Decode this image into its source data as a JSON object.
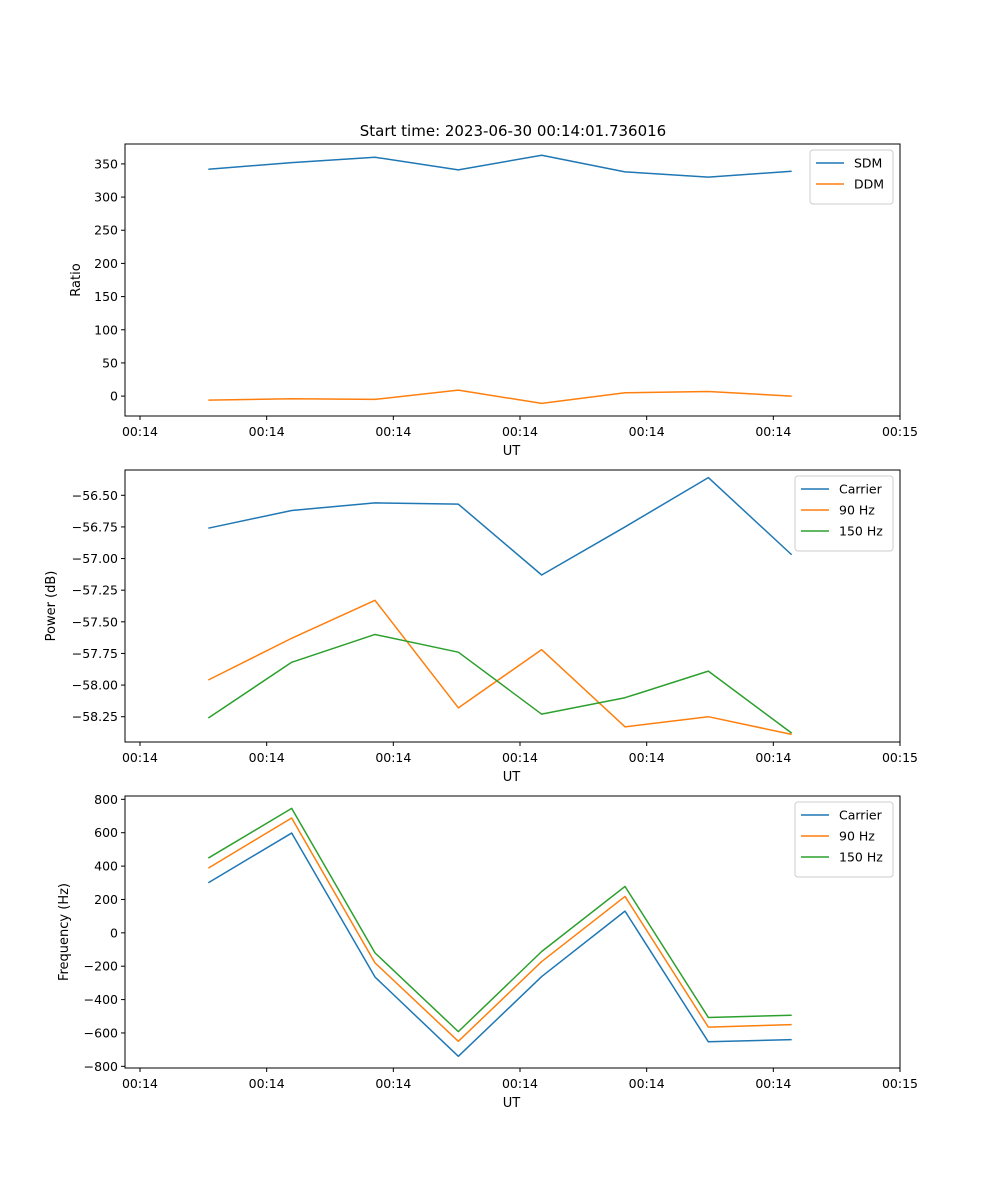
{
  "figure_title": "Start time: 2023-06-30 00:14:01.736016",
  "chart_data": [
    {
      "type": "line",
      "title": "Start time: 2023-06-30 00:14:01.736016",
      "xlabel": "UT",
      "ylabel": "Ratio",
      "x_ticks": [
        "00:14",
        "00:14",
        "00:14",
        "00:14",
        "00:14",
        "00:14",
        "00:15"
      ],
      "x_points": [
        1,
        2,
        3,
        4,
        5,
        6,
        7,
        8
      ],
      "xlim": [
        0,
        9.3
      ],
      "ylim": [
        -30,
        380
      ],
      "yticks": [
        0,
        50,
        100,
        150,
        200,
        250,
        300,
        350
      ],
      "ytick_labels": [
        "0",
        "50",
        "100",
        "150",
        "200",
        "250",
        "300",
        "350"
      ],
      "legend_position": "upper right",
      "grid": false,
      "series": [
        {
          "name": "SDM",
          "color": "#1f77b4",
          "values": [
            342,
            352,
            360,
            341,
            363,
            338,
            330,
            339
          ]
        },
        {
          "name": "DDM",
          "color": "#ff7f0e",
          "values": [
            -6,
            -4,
            -5,
            9,
            -11,
            5,
            7,
            0
          ]
        }
      ]
    },
    {
      "type": "line",
      "xlabel": "UT",
      "ylabel": "Power (dB)",
      "x_ticks": [
        "00:14",
        "00:14",
        "00:14",
        "00:14",
        "00:14",
        "00:14",
        "00:15"
      ],
      "x_points": [
        1,
        2,
        3,
        4,
        5,
        6,
        7,
        8
      ],
      "xlim": [
        0,
        9.3
      ],
      "ylim": [
        -58.45,
        -56.3
      ],
      "yticks": [
        -58.25,
        -58.0,
        -57.75,
        -57.5,
        -57.25,
        -57.0,
        -56.75,
        -56.5
      ],
      "ytick_labels": [
        "−58.25",
        "−58.00",
        "−57.75",
        "−57.50",
        "−57.25",
        "−57.00",
        "−56.75",
        "−56.50"
      ],
      "legend_position": "upper right",
      "grid": false,
      "series": [
        {
          "name": "Carrier",
          "color": "#1f77b4",
          "values": [
            -56.76,
            -56.62,
            -56.56,
            -56.57,
            -57.13,
            -56.75,
            -56.36,
            -56.97
          ]
        },
        {
          "name": "90 Hz",
          "color": "#ff7f0e",
          "values": [
            -57.96,
            -57.63,
            -57.33,
            -58.18,
            -57.72,
            -58.33,
            -58.25,
            -58.39
          ]
        },
        {
          "name": "150 Hz",
          "color": "#2ca02c",
          "values": [
            -58.26,
            -57.82,
            -57.6,
            -57.74,
            -58.23,
            -58.1,
            -57.89,
            -58.38
          ]
        }
      ]
    },
    {
      "type": "line",
      "xlabel": "UT",
      "ylabel": "Frequency (Hz)",
      "x_ticks": [
        "00:14",
        "00:14",
        "00:14",
        "00:14",
        "00:14",
        "00:14",
        "00:15"
      ],
      "x_points": [
        1,
        2,
        3,
        4,
        5,
        6,
        7,
        8
      ],
      "xlim": [
        0,
        9.3
      ],
      "ylim": [
        -810,
        820
      ],
      "yticks": [
        -800,
        -600,
        -400,
        -200,
        0,
        200,
        400,
        600,
        800
      ],
      "ytick_labels": [
        "−800",
        "−600",
        "−400",
        "−200",
        "0",
        "200",
        "400",
        "600",
        "800"
      ],
      "legend_position": "upper right",
      "grid": false,
      "series": [
        {
          "name": "Carrier",
          "color": "#1f77b4",
          "values": [
            300,
            598,
            -265,
            -740,
            -262,
            130,
            -653,
            -640
          ]
        },
        {
          "name": "90 Hz",
          "color": "#ff7f0e",
          "values": [
            388,
            688,
            -180,
            -650,
            -172,
            218,
            -565,
            -550
          ]
        },
        {
          "name": "150 Hz",
          "color": "#2ca02c",
          "values": [
            448,
            746,
            -120,
            -592,
            -112,
            278,
            -507,
            -494
          ]
        }
      ]
    }
  ]
}
